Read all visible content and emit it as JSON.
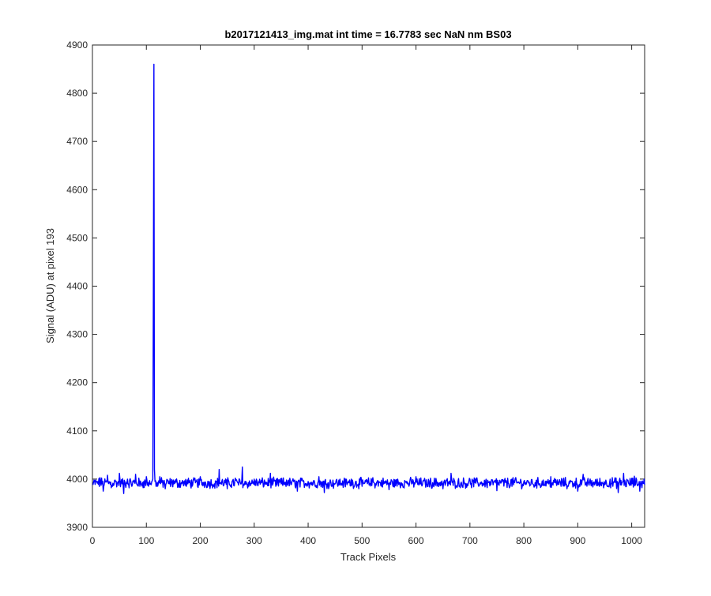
{
  "chart_data": {
    "type": "line",
    "title": "b2017121413_img.mat int time = 16.7783 sec  NaN nm BS03",
    "xlabel": "Track Pixels",
    "ylabel": "Signal (ADU) at pixel 193",
    "xlim": [
      0,
      1024
    ],
    "ylim": [
      3900,
      4900
    ],
    "xticks": [
      0,
      100,
      200,
      300,
      400,
      500,
      600,
      700,
      800,
      900,
      1000
    ],
    "yticks": [
      3900,
      4000,
      4100,
      4200,
      4300,
      4400,
      4500,
      4600,
      4700,
      4800,
      4900
    ],
    "grid": false,
    "series": [
      {
        "color": "#0000ff",
        "baseline": 3992,
        "noise_amplitude": 9,
        "x": [
          1,
          10,
          14,
          20,
          28,
          35,
          42,
          50,
          58,
          65,
          72,
          80,
          88,
          95,
          100,
          105,
          110,
          112,
          113,
          114,
          115,
          116,
          118,
          125,
          135,
          150,
          175,
          200,
          225,
          235,
          250,
          265,
          275,
          278,
          280,
          290,
          300,
          320,
          330,
          340,
          360,
          380,
          400,
          420,
          430,
          450,
          480,
          500,
          520,
          550,
          580,
          600,
          620,
          650,
          665,
          680,
          700,
          720,
          750,
          780,
          800,
          820,
          850,
          880,
          900,
          910,
          920,
          940,
          960,
          975,
          985,
          995,
          1005,
          1015,
          1024
        ],
        "y": [
          3988,
          3995,
          4003,
          3975,
          4008,
          3982,
          3998,
          4012,
          3970,
          4000,
          3990,
          4010,
          3985,
          3995,
          4005,
          3990,
          3995,
          4000,
          4390,
          4860,
          4020,
          3995,
          3985,
          4005,
          3980,
          3998,
          3990,
          4005,
          3985,
          4020,
          3980,
          4002,
          3990,
          4025,
          3990,
          3985,
          4000,
          3990,
          4012,
          3985,
          3998,
          3975,
          3995,
          4005,
          3972,
          3990,
          4000,
          3985,
          4003,
          3978,
          3995,
          4005,
          3990,
          3980,
          4012,
          3985,
          4000,
          3990,
          3976,
          4003,
          3995,
          3985,
          4005,
          3980,
          3975,
          4010,
          3990,
          3985,
          4000,
          3972,
          4012,
          3990,
          4006,
          3975,
          3988
        ]
      }
    ]
  }
}
